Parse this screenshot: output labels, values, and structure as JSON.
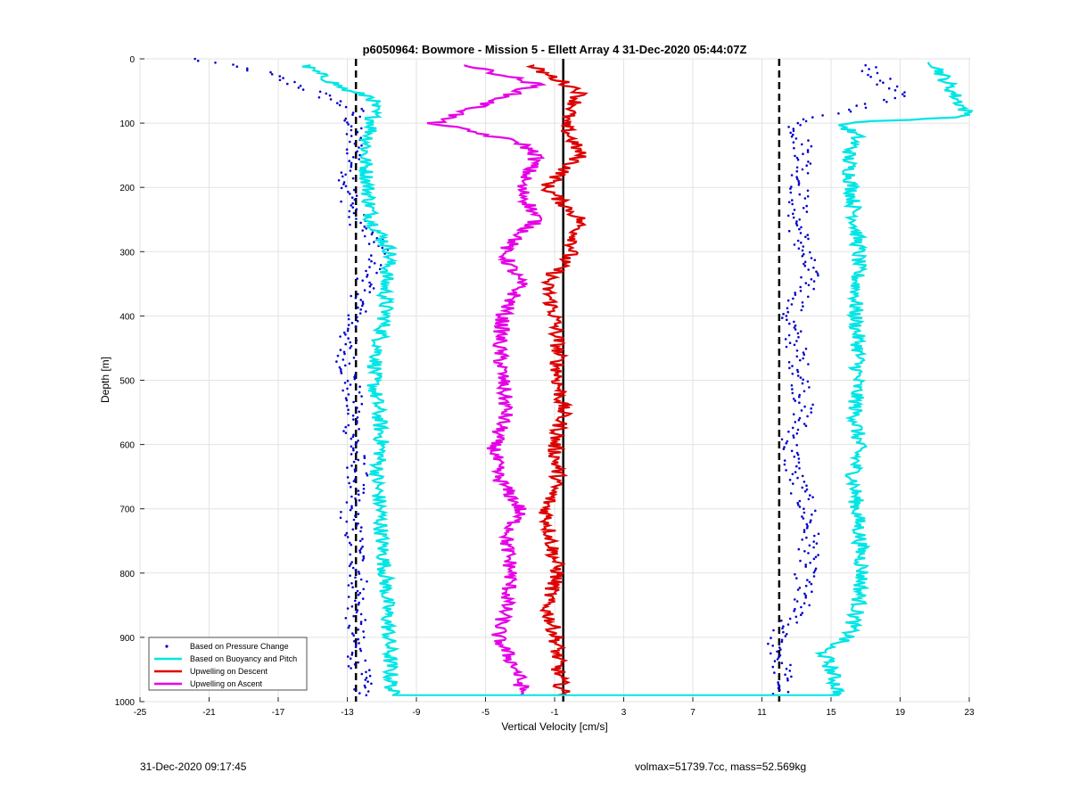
{
  "chart_data": {
    "type": "scatter",
    "title": "p6050964: Bowmore - Mission 5 - Ellett Array 4 31-Dec-2020 05:44:07Z",
    "xlabel": "Vertical Velocity [cm/s]",
    "ylabel": "Depth [m]",
    "xlim": [
      -25,
      23
    ],
    "ylim": [
      0,
      1000
    ],
    "y_reversed": true,
    "grid": true,
    "legend_placement": "bottom-left",
    "x_ticks": [
      "-25",
      "-21",
      "-17",
      "-13",
      "-9",
      "-5",
      "-1",
      "3",
      "7",
      "11",
      "15",
      "19",
      "23"
    ],
    "y_ticks": [
      "0",
      "100",
      "200",
      "300",
      "400",
      "500",
      "600",
      "700",
      "800",
      "900",
      "1000"
    ],
    "reference_lines": [
      {
        "x": -12.5,
        "style": "dashed",
        "color": "#000000"
      },
      {
        "x": -0.5,
        "style": "solid",
        "color": "#000000"
      },
      {
        "x": 12.0,
        "style": "dashed",
        "color": "#000000"
      }
    ],
    "series": [
      {
        "name": "Based on Pressure Change",
        "style": "dots",
        "color": "#0000cc",
        "descent": {
          "depth": [
            0,
            20,
            50,
            80,
            100,
            150,
            200,
            250,
            300,
            350,
            400,
            450,
            500,
            550,
            600,
            650,
            700,
            750,
            800,
            850,
            900,
            950,
            990
          ],
          "velocity": [
            -22,
            -18,
            -15,
            -12.5,
            -12.8,
            -12.5,
            -13,
            -12.5,
            -11,
            -12,
            -12.5,
            -13.2,
            -12.8,
            -12.7,
            -12.6,
            -12.4,
            -12.9,
            -12.6,
            -12.3,
            -12.5,
            -12.6,
            -12.3,
            -12.1
          ]
        },
        "ascent": {
          "depth": [
            10,
            60,
            100,
            150,
            200,
            250,
            300,
            350,
            400,
            450,
            500,
            550,
            600,
            650,
            700,
            750,
            800,
            850,
            900,
            950,
            990
          ],
          "velocity": [
            17,
            19,
            13,
            13.5,
            13.2,
            13,
            13.4,
            13.8,
            12.5,
            13,
            13.3,
            13.4,
            12.6,
            12.9,
            13.6,
            13.8,
            13.5,
            13.2,
            11.8,
            12.2,
            12.1
          ]
        }
      },
      {
        "name": "Based on Buoyancy and Pitch",
        "style": "line",
        "color": "#00e5e5",
        "descent": {
          "depth": [
            10,
            50,
            60,
            100,
            150,
            200,
            250,
            300,
            350,
            400,
            450,
            500,
            550,
            600,
            650,
            700,
            750,
            800,
            850,
            900,
            950,
            990
          ],
          "velocity": [
            -15.5,
            -13,
            -11.5,
            -11.5,
            -12,
            -11.8,
            -11.6,
            -10.5,
            -10.8,
            -10.8,
            -11.2,
            -11.5,
            -11.2,
            -11,
            -11.3,
            -11.1,
            -11,
            -10.8,
            -10.7,
            -10.6,
            -10.5,
            -10.4
          ]
        },
        "ascent": {
          "depth": [
            5,
            50,
            90,
            100,
            120,
            150,
            200,
            250,
            300,
            350,
            400,
            450,
            500,
            550,
            600,
            650,
            700,
            750,
            800,
            850,
            900,
            920,
            950,
            990
          ],
          "velocity": [
            21,
            22,
            23,
            15.5,
            16.5,
            16,
            16.2,
            16.4,
            16.6,
            16.5,
            16.4,
            16.6,
            16.5,
            16.4,
            16.6,
            16.3,
            16.5,
            16.7,
            16.8,
            16.6,
            16,
            14.5,
            15,
            15.5
          ]
        }
      },
      {
        "name": "Upwelling on Descent",
        "style": "line",
        "color": "#dd0000",
        "depth": [
          10,
          50,
          80,
          100,
          150,
          200,
          250,
          300,
          350,
          400,
          450,
          500,
          550,
          600,
          650,
          700,
          750,
          800,
          850,
          900,
          950,
          990
        ],
        "velocity": [
          -2.5,
          0.5,
          0,
          -0.5,
          0.5,
          -1.5,
          0.5,
          0,
          -1.5,
          -1,
          -0.8,
          -0.8,
          -0.5,
          -1,
          -0.8,
          -1.5,
          -1.2,
          -0.8,
          -1.5,
          -0.9,
          -0.8,
          -0.5
        ]
      },
      {
        "name": "Upwelling on Ascent",
        "style": "line",
        "color": "#e600e6",
        "depth": [
          10,
          40,
          70,
          100,
          130,
          150,
          200,
          250,
          300,
          350,
          400,
          450,
          500,
          550,
          600,
          650,
          700,
          750,
          800,
          850,
          900,
          950,
          990
        ],
        "velocity": [
          -6,
          -2,
          -5,
          -8,
          -3,
          -2,
          -3,
          -2,
          -4,
          -3,
          -4,
          -4.2,
          -4,
          -3.8,
          -4.5,
          -4.3,
          -3,
          -3.8,
          -3.5,
          -3.8,
          -4.3,
          -3.2,
          -2.8
        ]
      }
    ]
  },
  "footer": {
    "timestamp": "31-Dec-2020 09:17:45",
    "volmax_mass": "volmax=51739.7cc, mass=52.569kg"
  }
}
